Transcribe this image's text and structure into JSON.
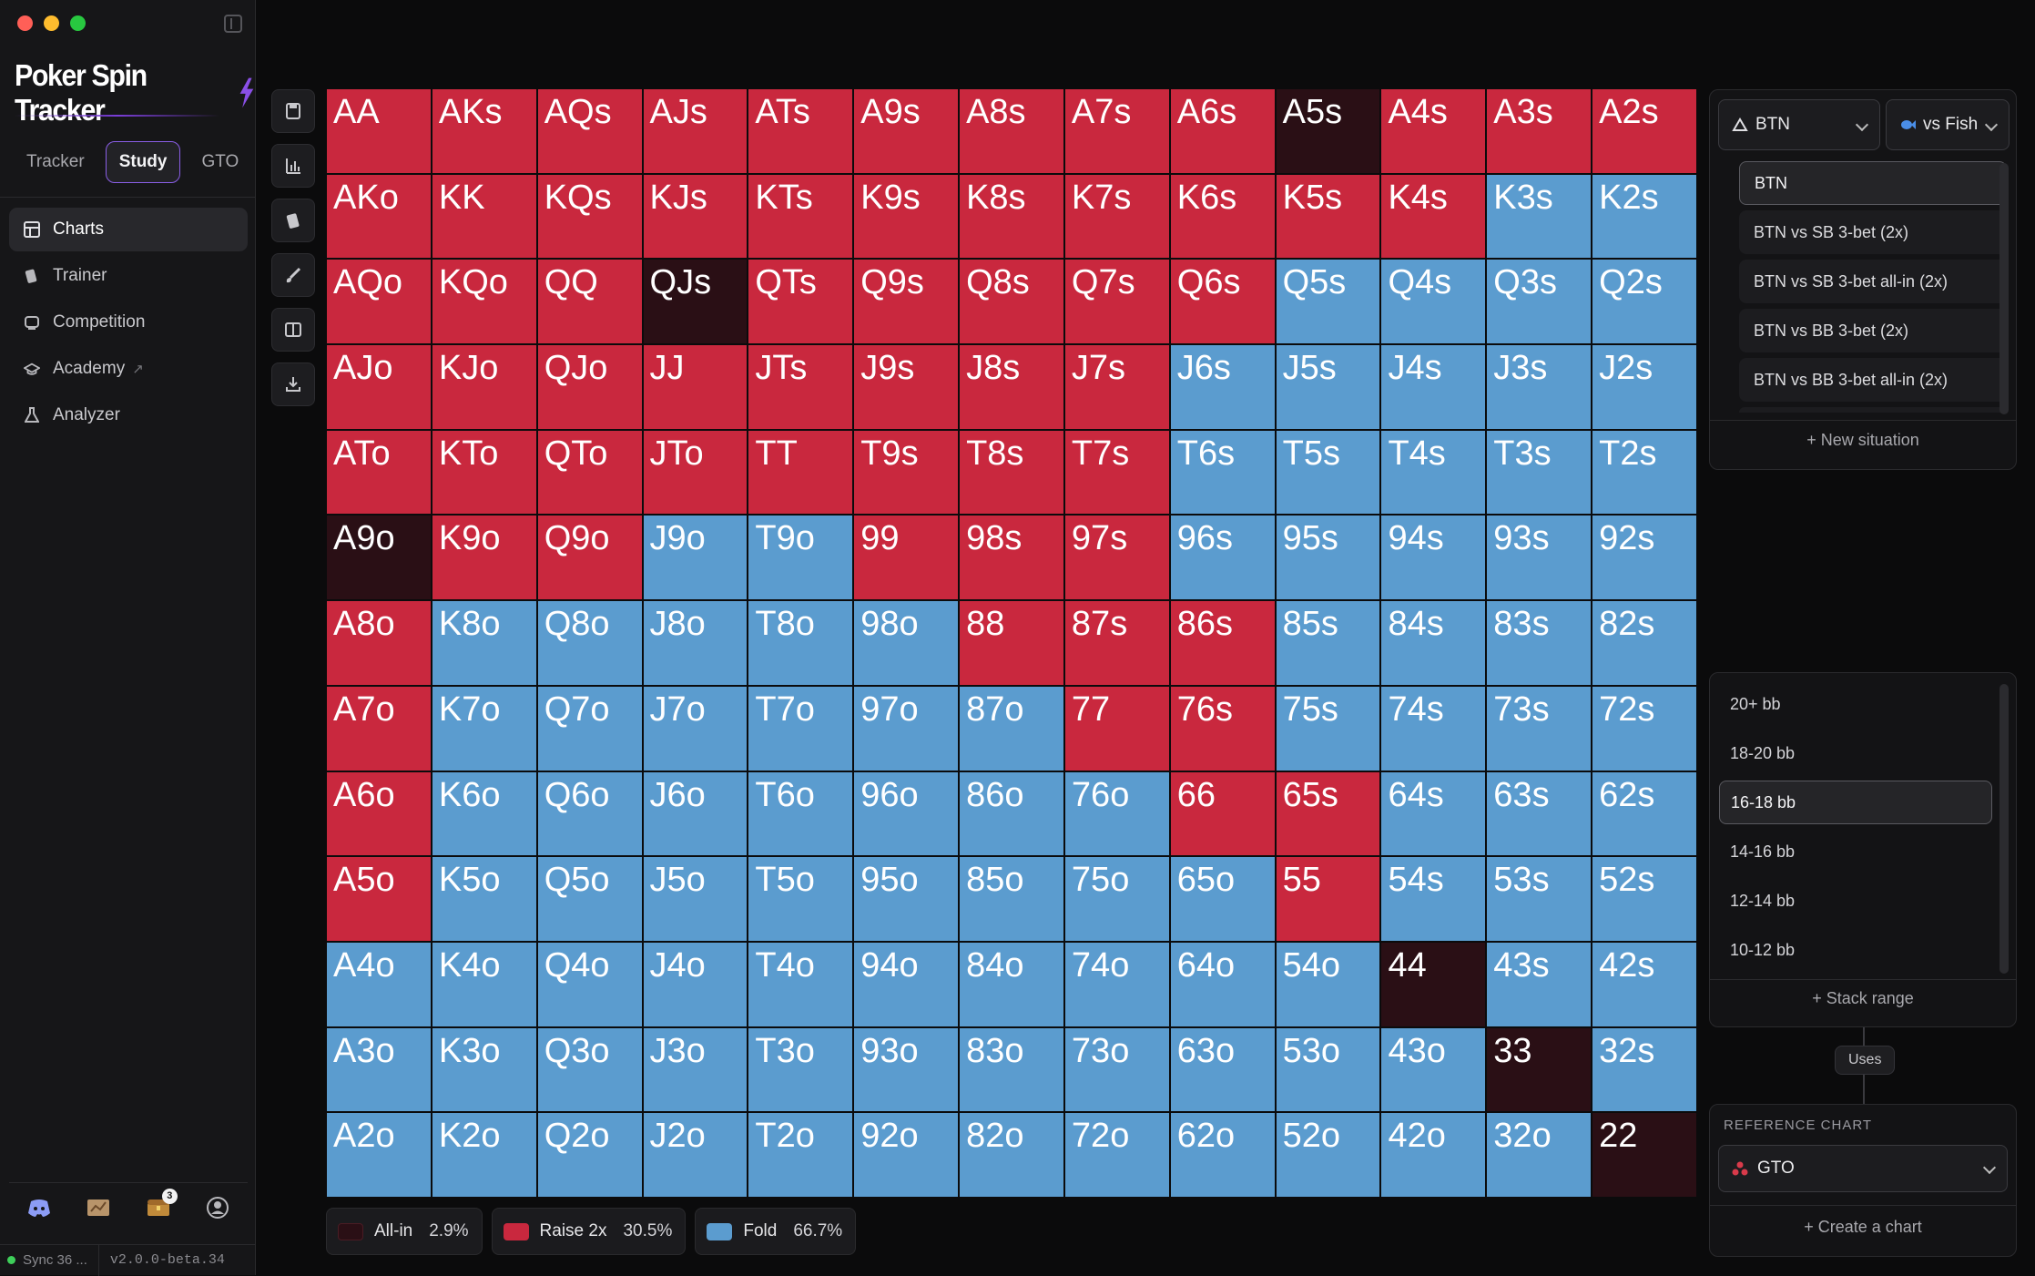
{
  "app": {
    "title": "Poker Spin Tracker"
  },
  "tabs": [
    {
      "label": "Tracker",
      "active": false
    },
    {
      "label": "Study",
      "active": true
    },
    {
      "label": "GTO",
      "active": false
    }
  ],
  "nav": [
    {
      "label": "Charts",
      "icon": "chart-grid-icon",
      "active": true
    },
    {
      "label": "Trainer",
      "icon": "cards-icon",
      "active": false
    },
    {
      "label": "Competition",
      "icon": "trophy-icon",
      "active": false
    },
    {
      "label": "Academy",
      "icon": "graduation-cap-icon",
      "active": false
    },
    {
      "label": "Analyzer",
      "icon": "flask-icon",
      "active": false
    }
  ],
  "bottom_icons": [
    {
      "name": "discord-icon"
    },
    {
      "name": "map-icon"
    },
    {
      "name": "chest-icon",
      "badge": "3"
    },
    {
      "name": "user-icon"
    }
  ],
  "status": {
    "sync": "Sync 36 ...",
    "version": "v2.0.0-beta.34"
  },
  "tools": [
    "save-icon",
    "bar-chart-icon",
    "cards-icon",
    "brush-icon",
    "split-view-icon",
    "download-icon"
  ],
  "colors": {
    "allin": "#2a0f15",
    "raise": "#c9283e",
    "fold": "#5b9ccf",
    "accent": "#8a5ee6"
  },
  "range": {
    "hands": [
      [
        "AA",
        "AKs",
        "AQs",
        "AJs",
        "ATs",
        "A9s",
        "A8s",
        "A7s",
        "A6s",
        "A5s",
        "A4s",
        "A3s",
        "A2s"
      ],
      [
        "AKo",
        "KK",
        "KQs",
        "KJs",
        "KTs",
        "K9s",
        "K8s",
        "K7s",
        "K6s",
        "K5s",
        "K4s",
        "K3s",
        "K2s"
      ],
      [
        "AQo",
        "KQo",
        "QQ",
        "QJs",
        "QTs",
        "Q9s",
        "Q8s",
        "Q7s",
        "Q6s",
        "Q5s",
        "Q4s",
        "Q3s",
        "Q2s"
      ],
      [
        "AJo",
        "KJo",
        "QJo",
        "JJ",
        "JTs",
        "J9s",
        "J8s",
        "J7s",
        "J6s",
        "J5s",
        "J4s",
        "J3s",
        "J2s"
      ],
      [
        "ATo",
        "KTo",
        "QTo",
        "JTo",
        "TT",
        "T9s",
        "T8s",
        "T7s",
        "T6s",
        "T5s",
        "T4s",
        "T3s",
        "T2s"
      ],
      [
        "A9o",
        "K9o",
        "Q9o",
        "J9o",
        "T9o",
        "99",
        "98s",
        "97s",
        "96s",
        "95s",
        "94s",
        "93s",
        "92s"
      ],
      [
        "A8o",
        "K8o",
        "Q8o",
        "J8o",
        "T8o",
        "98o",
        "88",
        "87s",
        "86s",
        "85s",
        "84s",
        "83s",
        "82s"
      ],
      [
        "A7o",
        "K7o",
        "Q7o",
        "J7o",
        "T7o",
        "97o",
        "87o",
        "77",
        "76s",
        "75s",
        "74s",
        "73s",
        "72s"
      ],
      [
        "A6o",
        "K6o",
        "Q6o",
        "J6o",
        "T6o",
        "96o",
        "86o",
        "76o",
        "66",
        "65s",
        "64s",
        "63s",
        "62s"
      ],
      [
        "A5o",
        "K5o",
        "Q5o",
        "J5o",
        "T5o",
        "95o",
        "85o",
        "75o",
        "65o",
        "55",
        "54s",
        "53s",
        "52s"
      ],
      [
        "A4o",
        "K4o",
        "Q4o",
        "J4o",
        "T4o",
        "94o",
        "84o",
        "74o",
        "64o",
        "54o",
        "44",
        "43s",
        "42s"
      ],
      [
        "A3o",
        "K3o",
        "Q3o",
        "J3o",
        "T3o",
        "93o",
        "83o",
        "73o",
        "63o",
        "53o",
        "43o",
        "33",
        "32s"
      ],
      [
        "A2o",
        "K2o",
        "Q2o",
        "J2o",
        "T2o",
        "92o",
        "82o",
        "72o",
        "62o",
        "52o",
        "42o",
        "32o",
        "22"
      ]
    ],
    "actions": [
      "RRRRRRRRRARRR",
      "RRRRRRRRRRRFF",
      "RRRARRRRRFFFF",
      "RRRRRRRRFFFFF",
      "RRRRRRRRFFFFF",
      "ARRFFRRRFFFFF",
      "RFFFFFRRRFFFF",
      "RFFFFFFRRFFFF",
      "RFFFFFFFRRFFF",
      "RFFFFFFFFRFFF",
      "FFFFFFFFFFAFF",
      "FFFFFFFFFFFAF",
      "FFFFFFFFFFFFA"
    ]
  },
  "legend": [
    {
      "label": "All-in",
      "pct": "2.9%",
      "color": "#2a0f15"
    },
    {
      "label": "Raise 2x",
      "pct": "30.5%",
      "color": "#c9283e"
    },
    {
      "label": "Fold",
      "pct": "66.7%",
      "color": "#5b9ccf"
    }
  ],
  "position_select": {
    "value": "BTN"
  },
  "opponent_select": {
    "value": "vs Fish"
  },
  "situations": [
    {
      "label": "BTN",
      "selected": true
    },
    {
      "label": "BTN vs SB 3-bet (2x)",
      "selected": false
    },
    {
      "label": "BTN vs SB 3-bet all-in (2x)",
      "selected": false
    },
    {
      "label": "BTN vs BB 3-bet (2x)",
      "selected": false
    },
    {
      "label": "BTN vs BB 3-bet all-in (2x)",
      "selected": false
    }
  ],
  "new_situation": "+ New situation",
  "stacks": [
    {
      "label": "20+ bb",
      "selected": false
    },
    {
      "label": "18-20 bb",
      "selected": false
    },
    {
      "label": "16-18 bb",
      "selected": true
    },
    {
      "label": "14-16 bb",
      "selected": false
    },
    {
      "label": "12-14 bb",
      "selected": false
    },
    {
      "label": "10-12 bb",
      "selected": false
    }
  ],
  "stack_range": "+ Stack range",
  "uses": "Uses",
  "reference": {
    "label": "REFERENCE CHART",
    "value": "GTO",
    "create": "+ Create a chart"
  }
}
